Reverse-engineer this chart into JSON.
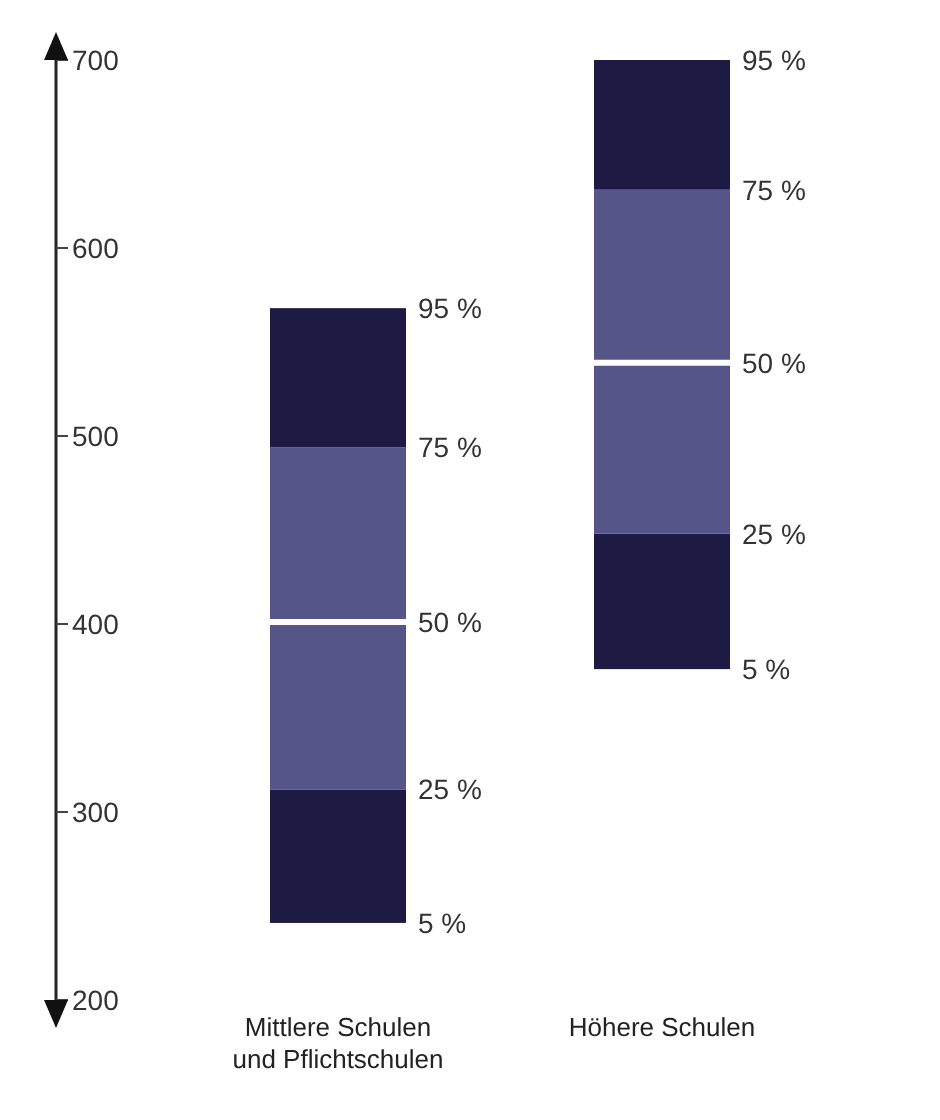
{
  "chart_data": {
    "type": "bar",
    "categories": [
      "Mittlere Schulen und Pflichtschulen",
      "Höhere Schulen"
    ],
    "series": [
      {
        "color": "#1d1a44",
        "base": [
          241,
          376
        ],
        "values": [
          71,
          72
        ]
      },
      {
        "color": "#56558a",
        "base": [
          312,
          448
        ],
        "values": [
          89,
          91
        ]
      },
      {
        "color": "#56558a",
        "base": [
          401,
          539
        ],
        "values": [
          93,
          92
        ]
      },
      {
        "color": "#1d1a44",
        "base": [
          494,
          631
        ],
        "values": [
          74,
          69
        ]
      }
    ],
    "ylim": [
      200,
      700
    ],
    "yticks": [
      200,
      300,
      400,
      500,
      600,
      700
    ],
    "grid": false,
    "annotations": [
      {
        "text": "5 %",
        "x": "Mittlere Schulen und Pflichtschulen",
        "y": 241
      },
      {
        "text": "25 %",
        "x": "Mittlere Schulen und Pflichtschulen",
        "y": 312
      },
      {
        "text": "50 %",
        "x": "Mittlere Schulen und Pflichtschulen",
        "y": 401
      },
      {
        "text": "75 %",
        "x": "Mittlere Schulen und Pflichtschulen",
        "y": 494
      },
      {
        "text": "95 %",
        "x": "Mittlere Schulen und Pflichtschulen",
        "y": 568
      },
      {
        "text": "5 %",
        "x": "Höhere Schulen",
        "y": 376
      },
      {
        "text": "25 %",
        "x": "Höhere Schulen",
        "y": 448
      },
      {
        "text": "50 %",
        "x": "Höhere Schulen",
        "y": 539
      },
      {
        "text": "75 %",
        "x": "Höhere Schulen",
        "y": 631
      },
      {
        "text": "95 %",
        "x": "Höhere Schulen",
        "y": 700
      }
    ]
  }
}
